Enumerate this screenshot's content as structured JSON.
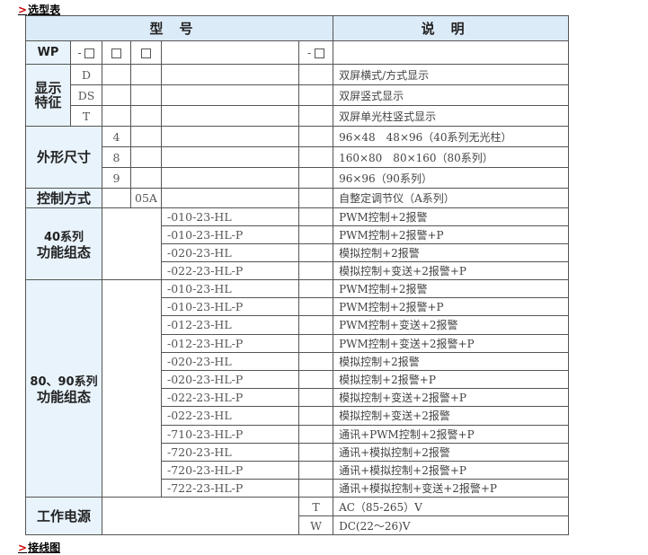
{
  "sections": {
    "selection": "选型表",
    "wiring": "接线图"
  },
  "header": {
    "model": "型号",
    "desc": "说明"
  },
  "wp_row": {
    "label": "WP",
    "dash1": "-",
    "dash2": "-"
  },
  "display": {
    "label": "显示特征",
    "rows": [
      {
        "code": "D",
        "desc": "双屏横式/方式显示"
      },
      {
        "code": "DS",
        "desc": "双屏竖式显示"
      },
      {
        "code": "T",
        "desc": "双屏单光柱竖式显示"
      }
    ]
  },
  "size": {
    "label": "外形尺寸",
    "rows": [
      {
        "code": "4",
        "desc": "96×48　48×96（40系列无光柱）"
      },
      {
        "code": "8",
        "desc": "160×80　80×160（80系列）"
      },
      {
        "code": "9",
        "desc": "96×96（90系列）"
      }
    ]
  },
  "control": {
    "label": "控制方式",
    "code": "05A",
    "desc": "自整定调节仪（A系列）"
  },
  "series40": {
    "label1": "40系列",
    "label2": "功能组态",
    "rows": [
      {
        "code": "-010-23-HL",
        "desc": "PWM控制+2报警"
      },
      {
        "code": "-010-23-HL-P",
        "desc": "PWM控制+2报警+P"
      },
      {
        "code": "-020-23-HL",
        "desc": "模拟控制+2报警"
      },
      {
        "code": "-022-23-HL-P",
        "desc": "模拟控制+变送+2报警+P"
      }
    ]
  },
  "series80": {
    "label1": "80、90系列",
    "label2": "功能组态",
    "rows": [
      {
        "code": "-010-23-HL",
        "desc": "PWM控制+2报警"
      },
      {
        "code": "-010-23-HL-P",
        "desc": "PWM控制+2报警+P"
      },
      {
        "code": "-012-23-HL",
        "desc": "PWM控制+变送+2报警"
      },
      {
        "code": "-012-23-HL-P",
        "desc": "PWM控制+变送+2报警+P"
      },
      {
        "code": "-020-23-HL",
        "desc": "模拟控制+2报警"
      },
      {
        "code": "-020-23-HL-P",
        "desc": "模拟控制+2报警+P"
      },
      {
        "code": "-022-23-HL-P",
        "desc": "模拟控制+变送+2报警+P"
      },
      {
        "code": "-022-23-HL",
        "desc": "模拟控制+变送+2报警"
      },
      {
        "code": "-710-23-HL-P",
        "desc": "通讯+PWM控制+2报警+P"
      },
      {
        "code": "-720-23-HL",
        "desc": "通讯+模拟控制+2报警"
      },
      {
        "code": "-720-23-HL-P",
        "desc": "通讯+模拟控制+2报警+P"
      },
      {
        "code": "-722-23-HL-P",
        "desc": "通讯+模拟控制+变送+2报警+P"
      }
    ]
  },
  "power": {
    "label": "工作电源",
    "rows": [
      {
        "code": "T",
        "desc": "AC（85-265）V"
      },
      {
        "code": "W",
        "desc": "DC(22～26)V"
      }
    ]
  },
  "colors": {
    "header_bg": "#dcebf8",
    "label_bg": "#e8f3fc",
    "border": "#555555",
    "section_arrow": "#cc0000"
  }
}
